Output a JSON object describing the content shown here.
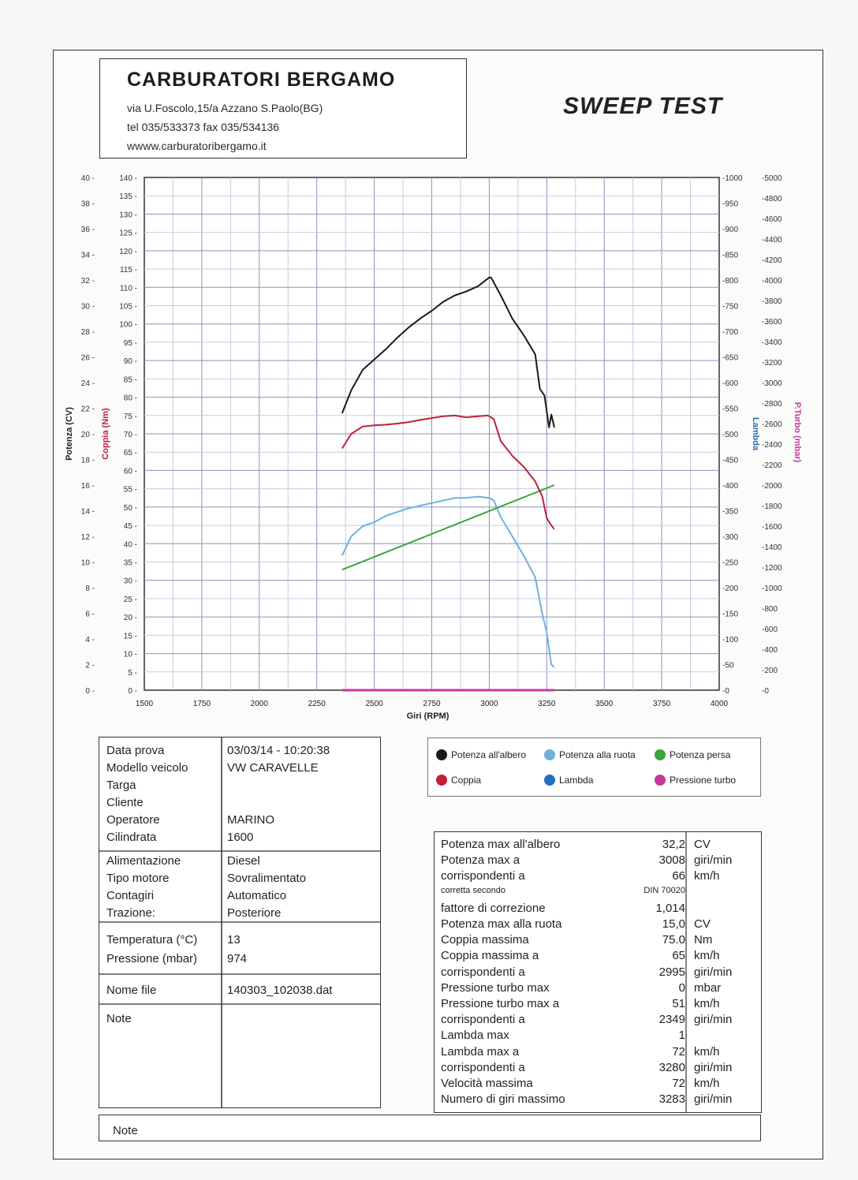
{
  "header": {
    "company": "CARBURATORI BERGAMO",
    "address": "via U.Foscolo,15/a Azzano S.Paolo(BG)",
    "phone": "tel 035/533373  fax 035/534136",
    "website": "wwww.carburatoribergamo.it",
    "report_title": "SWEEP TEST"
  },
  "chart_data": {
    "type": "line",
    "xlabel": "Giri (RPM)",
    "xlim": [
      1500,
      4000
    ],
    "x_ticks": [
      "1500",
      "1750",
      "2000",
      "2250",
      "2500",
      "2750",
      "3000",
      "3250",
      "3500",
      "3750",
      "4000"
    ],
    "axes": {
      "potenza": {
        "label": "Potenza (CV)",
        "ylim": [
          0,
          40
        ],
        "ticks": [
          "0",
          "2",
          "4",
          "6",
          "8",
          "10",
          "12",
          "14",
          "16",
          "18",
          "20",
          "22",
          "24",
          "26",
          "28",
          "30",
          "32",
          "34",
          "36",
          "38",
          "40"
        ]
      },
      "coppia": {
        "label": "Coppia (Nm)",
        "ylim": [
          0,
          140
        ],
        "ticks": [
          "0",
          "5",
          "10",
          "15",
          "20",
          "25",
          "30",
          "35",
          "40",
          "45",
          "50",
          "55",
          "60",
          "65",
          "70",
          "75",
          "80",
          "85",
          "90",
          "95",
          "100",
          "105",
          "110",
          "115",
          "120",
          "125",
          "130",
          "135",
          "140"
        ]
      },
      "lambda": {
        "label": "Lambda",
        "ylim": [
          0,
          1000
        ],
        "ticks": [
          "0",
          "50",
          "100",
          "150",
          "200",
          "250",
          "300",
          "350",
          "400",
          "450",
          "500",
          "550",
          "600",
          "650",
          "700",
          "750",
          "800",
          "850",
          "900",
          "950",
          "1000"
        ]
      },
      "turbo": {
        "label": "P.Turbo (mbar)",
        "ylim": [
          0,
          5000
        ],
        "ticks": [
          "0",
          "200",
          "400",
          "600",
          "800",
          "1000",
          "1200",
          "1400",
          "1600",
          "1800",
          "2000",
          "2200",
          "2400",
          "2600",
          "2800",
          "3000",
          "3200",
          "3400",
          "3600",
          "3800",
          "4000",
          "4200",
          "4400",
          "4600",
          "4800",
          "5000"
        ]
      }
    },
    "series": [
      {
        "name": "Potenza all'albero",
        "color": "#1a1a1a",
        "axis": "potenza",
        "x": [
          2360,
          2400,
          2450,
          2500,
          2550,
          2600,
          2650,
          2700,
          2750,
          2800,
          2850,
          2900,
          2950,
          3000,
          3008,
          3050,
          3100,
          3150,
          3200,
          3220,
          3240,
          3260,
          3270,
          3283
        ],
        "y": [
          21.6,
          23.4,
          25.0,
          25.8,
          26.6,
          27.5,
          28.3,
          29.0,
          29.6,
          30.3,
          30.8,
          31.1,
          31.5,
          32.2,
          32.2,
          30.8,
          29.0,
          27.7,
          26.2,
          23.5,
          23.0,
          20.5,
          21.5,
          20.5
        ]
      },
      {
        "name": "Potenza alla ruota",
        "color": "#6fb0dd",
        "axis": "potenza",
        "x": [
          2360,
          2400,
          2450,
          2500,
          2550,
          2600,
          2650,
          2700,
          2750,
          2800,
          2850,
          2900,
          2950,
          3000,
          3020,
          3050,
          3100,
          3150,
          3200,
          3230,
          3250,
          3270,
          3283
        ],
        "y": [
          10.5,
          12.0,
          12.8,
          13.1,
          13.6,
          13.9,
          14.2,
          14.4,
          14.6,
          14.8,
          15.0,
          15.0,
          15.1,
          15.0,
          14.8,
          13.5,
          12.0,
          10.5,
          8.8,
          6.0,
          4.5,
          2.0,
          1.8
        ]
      },
      {
        "name": "Potenza persa",
        "color": "#3aa43a",
        "axis": "potenza",
        "x": [
          2360,
          3283
        ],
        "y": [
          9.4,
          16.0
        ]
      },
      {
        "name": "Coppia",
        "color": "#c41e3a",
        "axis": "coppia",
        "x": [
          2360,
          2400,
          2450,
          2500,
          2550,
          2600,
          2650,
          2700,
          2750,
          2800,
          2850,
          2900,
          2950,
          2995,
          3020,
          3050,
          3100,
          3150,
          3200,
          3230,
          3250,
          3270,
          3283
        ],
        "y": [
          66,
          70,
          72,
          72.3,
          72.5,
          72.8,
          73.2,
          73.8,
          74.3,
          74.8,
          75.0,
          74.5,
          74.8,
          75.0,
          74.0,
          68.0,
          64.0,
          61.0,
          57.0,
          53.0,
          47.0,
          45.0,
          44.0
        ]
      },
      {
        "name": "Lambda",
        "color": "#1f6fc0",
        "axis": "lambda",
        "x": [],
        "y": []
      },
      {
        "name": "Pressione turbo",
        "color": "#c8379a",
        "axis": "turbo",
        "x": [
          2360,
          3283
        ],
        "y": [
          0,
          0
        ]
      }
    ]
  },
  "info": {
    "rows": [
      {
        "label": "Data prova",
        "value": "03/03/14  - 10:20:38"
      },
      {
        "label": "Modello veicolo",
        "value": "VW CARAVELLE"
      },
      {
        "label": "Targa",
        "value": ""
      },
      {
        "label": "Cliente",
        "value": ""
      },
      {
        "label": "Operatore",
        "value": "MARINO"
      },
      {
        "label": "Cilindrata",
        "value": "1600"
      },
      {
        "label": "Alimentazione",
        "value": "Diesel"
      },
      {
        "label": "Tipo motore",
        "value": "Sovralimentato"
      },
      {
        "label": "Contagiri",
        "value": "Automatico"
      },
      {
        "label": "Trazione:",
        "value": "Posteriore"
      },
      {
        "label": "Temperatura (°C)",
        "value": "13"
      },
      {
        "label": "Pressione (mbar)",
        "value": "974"
      },
      {
        "label": "Nome file",
        "value": "140303_102038.dat"
      },
      {
        "label": "Note",
        "value": ""
      }
    ]
  },
  "results": [
    {
      "label": "Potenza max all'albero",
      "value": "32,2",
      "unit": "CV"
    },
    {
      "label": "Potenza max a",
      "value": "3008",
      "unit": "giri/min"
    },
    {
      "label": "corrispondenti a",
      "value": "66",
      "unit": "km/h"
    },
    {
      "label": "corretta secondo",
      "value": "DIN 70020",
      "unit": "",
      "small": true
    },
    {
      "label": "fattore di correzione",
      "value": "1,014",
      "unit": ""
    },
    {
      "label": "Potenza max alla ruota",
      "value": "15,0",
      "unit": "CV"
    },
    {
      "label": "Coppia massima",
      "value": "75.0",
      "unit": "Nm"
    },
    {
      "label": "Coppia massima a",
      "value": "65",
      "unit": "km/h"
    },
    {
      "label": "corrispondenti a",
      "value": "2995",
      "unit": "giri/min"
    },
    {
      "label": "Pressione turbo max",
      "value": "0",
      "unit": "mbar"
    },
    {
      "label": "Pressione turbo max a",
      "value": "51",
      "unit": "km/h"
    },
    {
      "label": "corrispondenti a",
      "value": "2349",
      "unit": "giri/min"
    },
    {
      "label": "Lambda max",
      "value": "1",
      "unit": ""
    },
    {
      "label": "Lambda max a",
      "value": "72",
      "unit": "km/h"
    },
    {
      "label": "corrispondenti a",
      "value": "3280",
      "unit": "giri/min"
    },
    {
      "label": "Velocità massima",
      "value": "72",
      "unit": "km/h"
    },
    {
      "label": "Numero di giri massimo",
      "value": "3283",
      "unit": "giri/min"
    }
  ],
  "footer": {
    "note_label": "Note"
  }
}
